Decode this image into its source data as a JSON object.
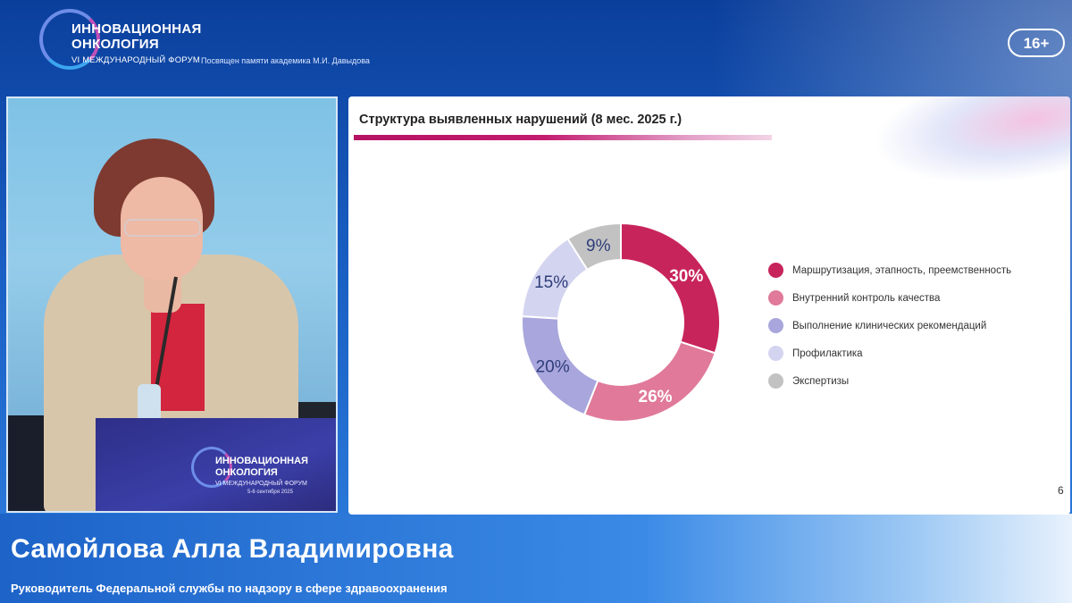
{
  "header": {
    "logo_line1": "ИННОВАЦИОННАЯ",
    "logo_line2": "ОНКОЛОГИЯ",
    "logo_subtitle": "VI МЕЖДУНАРОДНЫЙ ФОРУМ",
    "caption": "Посвящен памяти академика М.И. Давыдова",
    "age_rating": "16+"
  },
  "video": {
    "podium_line1": "ИННОВАЦИОННАЯ",
    "podium_line2": "ОНКОЛОГИЯ",
    "podium_subtitle": "VI МЕЖДУНАРОДНЫЙ ФОРУМ",
    "podium_date": "5-6 сентября 2025"
  },
  "slide": {
    "title": "Структура выявленных нарушений (8 мес. 2025 г.)",
    "page_number": "6"
  },
  "chart_data": {
    "type": "pie",
    "donut": true,
    "title": "Структура выявленных нарушений (8 мес. 2025 г.)",
    "legend_position": "right",
    "slices": [
      {
        "label": "Маршрутизация, этапность, преемственность",
        "value": 30,
        "display": "30%",
        "color": "#c8245c",
        "text_color": "#ffffff"
      },
      {
        "label": "Внутренний контроль качества",
        "value": 26,
        "display": "26%",
        "color": "#e0799a",
        "text_color": "#ffffff"
      },
      {
        "label": "Выполнение клинических рекомендаций",
        "value": 20,
        "display": "20%",
        "color": "#a8a6dc",
        "text_color": "#2f3d7a"
      },
      {
        "label": "Профилактика",
        "value": 15,
        "display": "15%",
        "color": "#d3d5f0",
        "text_color": "#2f3d7a"
      },
      {
        "label": "Экспертизы",
        "value": 9,
        "display": "9%",
        "color": "#c2c2c2",
        "text_color": "#2f3d7a"
      }
    ]
  },
  "lower_third": {
    "name": "Самойлова Алла Владимировна",
    "role": "Руководитель Федеральной службы по надзору в сфере здравоохранения"
  }
}
